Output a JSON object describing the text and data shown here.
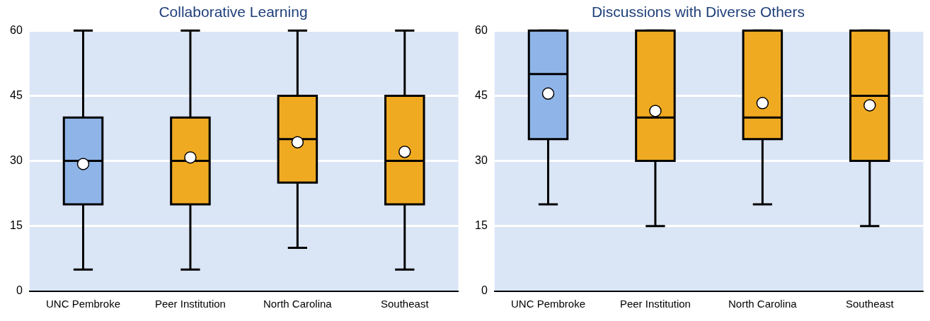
{
  "chart_data": [
    {
      "type": "box",
      "title": "Collaborative Learning",
      "categories": [
        "UNC Pembroke",
        "Peer Institution",
        "North Carolina",
        "Southeast"
      ],
      "colors": [
        "#8fb4e8",
        "#f0aa22",
        "#f0aa22",
        "#f0aa22"
      ],
      "boxes": [
        {
          "low": 5,
          "q1": 20,
          "median": 30,
          "q3": 40,
          "high": 60,
          "mean": 29.3
        },
        {
          "low": 5,
          "q1": 20,
          "median": 30,
          "q3": 40,
          "high": 60,
          "mean": 30.8
        },
        {
          "low": 10,
          "q1": 25,
          "median": 35,
          "q3": 45,
          "high": 60,
          "mean": 34.3
        },
        {
          "low": 5,
          "q1": 20,
          "median": 30,
          "q3": 45,
          "high": 60,
          "mean": 32.1
        }
      ],
      "ylim": [
        0,
        60
      ],
      "yticks": [
        0,
        15,
        30,
        45,
        60
      ],
      "grid": "y",
      "marker": "circle"
    },
    {
      "type": "box",
      "title": "Discussions with Diverse Others",
      "categories": [
        "UNC Pembroke",
        "Peer Institution",
        "North Carolina",
        "Southeast"
      ],
      "colors": [
        "#8fb4e8",
        "#f0aa22",
        "#f0aa22",
        "#f0aa22"
      ],
      "boxes": [
        {
          "low": 20,
          "q1": 35,
          "median": 50,
          "q3": 60,
          "high": 60,
          "mean": 45.5
        },
        {
          "low": 15,
          "q1": 30,
          "median": 40,
          "q3": 60,
          "high": 60,
          "mean": 41.5
        },
        {
          "low": 20,
          "q1": 35,
          "median": 40,
          "q3": 60,
          "high": 60,
          "mean": 43.3
        },
        {
          "low": 15,
          "q1": 30,
          "median": 45,
          "q3": 60,
          "high": 60,
          "mean": 42.8
        }
      ],
      "ylim": [
        0,
        60
      ],
      "yticks": [
        0,
        15,
        30,
        45,
        60
      ],
      "grid": "y",
      "marker": "circle"
    }
  ]
}
